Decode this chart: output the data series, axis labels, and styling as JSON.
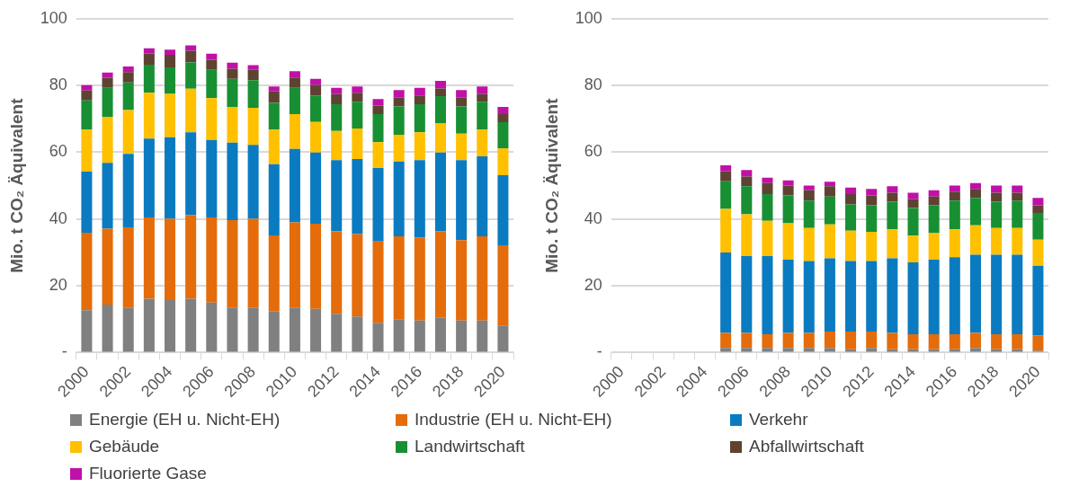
{
  "chart_data": [
    {
      "type": "bar",
      "stacked": true,
      "ylabel": "Mio. t CO₂ Äquivalent",
      "categories": [
        "2000",
        null,
        "2002",
        null,
        "2004",
        null,
        "2006",
        null,
        "2008",
        null,
        "2010",
        null,
        "2012",
        null,
        "2014",
        null,
        "2016",
        null,
        "2018",
        null,
        "2020"
      ],
      "ylim": [
        0,
        100
      ],
      "yticks": [
        {
          "value": 0,
          "label": "-"
        },
        20,
        40,
        60,
        80,
        100
      ],
      "grid": "y",
      "legend": "bottom",
      "series": [
        {
          "name": "Energie (EH u. Nicht-EH)",
          "color": "#808080",
          "values": [
            12.7,
            14.4,
            13.5,
            16.1,
            15.7,
            16.1,
            15.0,
            13.5,
            13.5,
            12.3,
            13.5,
            13.1,
            11.6,
            10.8,
            8.9,
            10.0,
            9.6,
            10.4,
            9.6,
            9.6,
            8.1
          ]
        },
        {
          "name": "Industrie (EH u. Nicht-EH)",
          "color": "#e46c0a",
          "values": [
            23.2,
            22.7,
            24.0,
            24.4,
            24.4,
            25.1,
            25.5,
            26.2,
            26.6,
            22.8,
            25.5,
            25.5,
            24.7,
            24.7,
            24.4,
            24.8,
            24.8,
            25.9,
            24.1,
            25.2,
            24.0
          ]
        },
        {
          "name": "Verkehr",
          "color": "#0a7bc0",
          "values": [
            18.3,
            19.7,
            22.0,
            23.6,
            24.4,
            24.8,
            23.2,
            23.2,
            22.1,
            21.3,
            22.0,
            21.3,
            21.3,
            22.5,
            22.0,
            22.4,
            23.2,
            23.6,
            23.9,
            24.0,
            21.0
          ]
        },
        {
          "name": "Gebäude",
          "color": "#ffc000",
          "values": [
            12.6,
            13.8,
            13.1,
            13.7,
            13.0,
            13.0,
            12.5,
            10.7,
            11.1,
            10.4,
            10.4,
            9.2,
            8.8,
            9.1,
            7.7,
            8.0,
            8.4,
            8.8,
            8.0,
            8.0,
            8.0
          ]
        },
        {
          "name": "Landwirtschaft",
          "color": "#188f33",
          "values": [
            8.7,
            8.7,
            8.3,
            8.4,
            7.9,
            7.9,
            8.5,
            8.4,
            8.3,
            8.0,
            7.9,
            7.9,
            8.0,
            8.0,
            8.4,
            8.5,
            8.4,
            8.1,
            8.1,
            8.3,
            7.9
          ]
        },
        {
          "name": "Abfallwirtschaft",
          "color": "#5e4232",
          "values": [
            3.0,
            3.0,
            3.1,
            3.4,
            3.8,
            3.5,
            3.0,
            3.0,
            3.1,
            3.4,
            3.1,
            3.1,
            3.0,
            2.7,
            2.6,
            2.6,
            2.6,
            2.3,
            2.6,
            2.3,
            2.4
          ]
        },
        {
          "name": "Fluorierte Gase",
          "color": "#c010a8",
          "values": [
            1.6,
            1.6,
            1.7,
            1.5,
            1.5,
            1.6,
            1.8,
            1.8,
            1.4,
            1.5,
            1.9,
            1.9,
            1.9,
            1.9,
            1.9,
            2.3,
            2.3,
            2.3,
            2.3,
            2.3,
            2.2
          ]
        }
      ]
    },
    {
      "type": "bar",
      "stacked": true,
      "ylabel": "Mio. t CO₂ Äquivalent",
      "categories": [
        "2000",
        null,
        "2002",
        null,
        "2004",
        null,
        "2006",
        null,
        "2008",
        null,
        "2010",
        null,
        "2012",
        null,
        "2014",
        null,
        "2016",
        null,
        "2018",
        null,
        "2020"
      ],
      "ylim": [
        0,
        100
      ],
      "yticks": [
        {
          "value": 0,
          "label": "-"
        },
        20,
        40,
        60,
        80,
        100
      ],
      "grid": "y",
      "series": [
        {
          "color": "#808080",
          "values": [
            null,
            null,
            null,
            null,
            null,
            1.4,
            1.4,
            1.4,
            1.4,
            1.4,
            1.4,
            1.0,
            1.4,
            1.0,
            1.0,
            1.0,
            1.0,
            1.4,
            1.0,
            1.0,
            0.6
          ]
        },
        {
          "color": "#e46c0a",
          "values": [
            null,
            null,
            null,
            null,
            null,
            4.5,
            4.5,
            4.1,
            4.5,
            4.5,
            4.9,
            5.3,
            4.9,
            4.9,
            4.5,
            4.5,
            4.5,
            4.5,
            4.5,
            4.5,
            4.5
          ]
        },
        {
          "color": "#0a7bc0",
          "values": [
            null,
            null,
            null,
            null,
            null,
            24.1,
            23.0,
            23.4,
            21.9,
            21.5,
            21.9,
            21.1,
            21.1,
            22.3,
            21.5,
            22.3,
            23.1,
            23.4,
            23.8,
            23.8,
            20.9
          ]
        },
        {
          "color": "#ffc000",
          "values": [
            null,
            null,
            null,
            null,
            null,
            13.0,
            12.5,
            10.6,
            10.9,
            9.9,
            10.2,
            9.1,
            8.8,
            8.7,
            8.0,
            8.0,
            8.3,
            8.8,
            8.0,
            8.0,
            7.8
          ]
        },
        {
          "color": "#188f33",
          "values": [
            null,
            null,
            null,
            null,
            null,
            8.3,
            8.4,
            8.0,
            8.4,
            8.2,
            8.3,
            7.9,
            7.9,
            8.3,
            8.3,
            8.3,
            8.6,
            8.2,
            7.9,
            8.2,
            8.0
          ]
        },
        {
          "color": "#5e4232",
          "values": [
            null,
            null,
            null,
            null,
            null,
            3.0,
            2.9,
            3.3,
            2.9,
            3.1,
            3.1,
            3.1,
            3.0,
            2.7,
            2.6,
            2.6,
            2.7,
            2.7,
            2.7,
            2.4,
            2.3
          ]
        },
        {
          "color": "#c010a8",
          "values": [
            null,
            null,
            null,
            null,
            null,
            1.8,
            2.0,
            1.6,
            1.6,
            1.4,
            1.4,
            1.9,
            1.9,
            1.9,
            2.0,
            1.9,
            1.8,
            1.8,
            2.1,
            2.1,
            2.2
          ]
        }
      ]
    }
  ]
}
